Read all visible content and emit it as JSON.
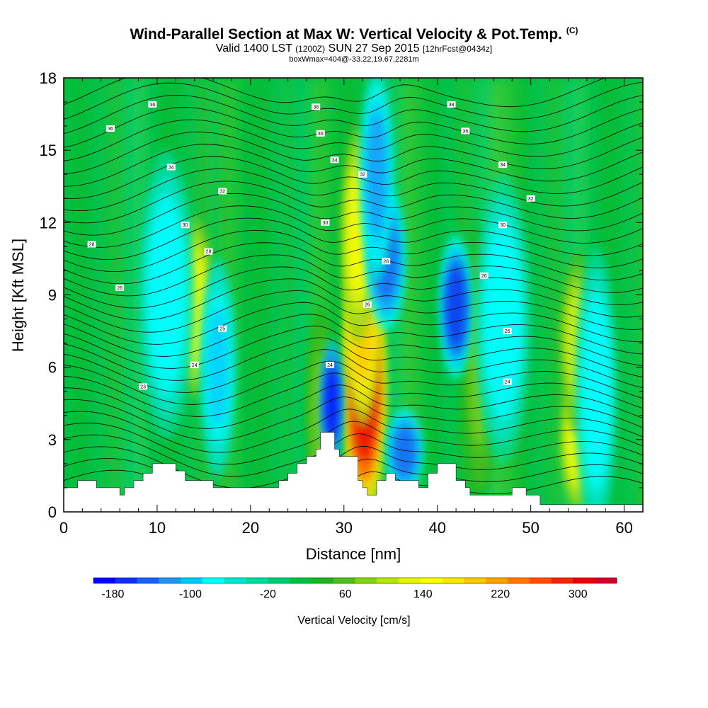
{
  "chart_data": {
    "type": "heatmap",
    "title": "Wind-Parallel Section at Max W: Vertical Velocity & Pot.Temp.",
    "title_mark": "(C)",
    "subtitle_main": "Valid 1400 LST",
    "subtitle_utc": "(1200Z)",
    "subtitle_date": "SUN 27 Sep 2015",
    "subtitle_fcst": "[12hrFcst@0434z]",
    "subtitle2": "boxWmax=404@-33.22,19.67,2281m",
    "xlabel": "Distance [nm]",
    "ylabel": "Height [Kft MSL]",
    "xlim": [
      0,
      62
    ],
    "ylim": [
      0,
      18
    ],
    "xticks": [
      0,
      10,
      20,
      30,
      40,
      50,
      60
    ],
    "yticks": [
      0,
      3,
      6,
      9,
      12,
      15,
      18
    ],
    "colorbar": {
      "label": "Vertical Velocity [cm/s]",
      "ticks": [
        -180,
        -100,
        -20,
        60,
        140,
        220,
        300
      ],
      "range": [
        -200,
        340
      ],
      "colors": [
        "#0000ff",
        "#0a32f0",
        "#1464f0",
        "#1e96f8",
        "#00c8ff",
        "#00ffff",
        "#00e6d2",
        "#00dca0",
        "#00cc6e",
        "#00c040",
        "#1eb41e",
        "#4cbf1a",
        "#82d21e",
        "#b4e614",
        "#e6f50a",
        "#ffff00",
        "#ffe600",
        "#ffc800",
        "#ffa000",
        "#ff7800",
        "#ff5000",
        "#f02800",
        "#e60000",
        "#d20028"
      ]
    },
    "terrain": [
      [
        0,
        1
      ],
      [
        1.5,
        1
      ],
      [
        1.5,
        1.3
      ],
      [
        3.5,
        1.3
      ],
      [
        3.5,
        1
      ],
      [
        6,
        1
      ],
      [
        6,
        0.7
      ],
      [
        6.5,
        0.7
      ],
      [
        6.5,
        1
      ],
      [
        7.5,
        1
      ],
      [
        7.5,
        1.3
      ],
      [
        8.5,
        1.3
      ],
      [
        8.5,
        1.6
      ],
      [
        9.5,
        1.6
      ],
      [
        9.5,
        2
      ],
      [
        12,
        2
      ],
      [
        12,
        1.7
      ],
      [
        13,
        1.7
      ],
      [
        13,
        1.3
      ],
      [
        16,
        1.3
      ],
      [
        16,
        1
      ],
      [
        23,
        1
      ],
      [
        23,
        1.3
      ],
      [
        24,
        1.3
      ],
      [
        24,
        1.6
      ],
      [
        25,
        1.6
      ],
      [
        25,
        2
      ],
      [
        26,
        2
      ],
      [
        26,
        2.3
      ],
      [
        27,
        2.3
      ],
      [
        27,
        2.6
      ],
      [
        27.5,
        2.6
      ],
      [
        27.5,
        3.3
      ],
      [
        29,
        3.3
      ],
      [
        29,
        2.6
      ],
      [
        29.5,
        2.6
      ],
      [
        29.5,
        2.3
      ],
      [
        31.5,
        2.3
      ],
      [
        31.5,
        1.3
      ],
      [
        32,
        1.3
      ],
      [
        32,
        1
      ],
      [
        32.5,
        1
      ],
      [
        32.5,
        0.7
      ],
      [
        33.5,
        0.7
      ],
      [
        33.5,
        1.3
      ],
      [
        34.5,
        1.3
      ],
      [
        34.5,
        1.6
      ],
      [
        35.5,
        1.6
      ],
      [
        35.5,
        1.3
      ],
      [
        38,
        1.3
      ],
      [
        38,
        1
      ],
      [
        39,
        1
      ],
      [
        39,
        1.6
      ],
      [
        40,
        1.6
      ],
      [
        40,
        2
      ],
      [
        42,
        2
      ],
      [
        42,
        1.3
      ],
      [
        43,
        1.3
      ],
      [
        43,
        1
      ],
      [
        43.5,
        1
      ],
      [
        43.5,
        0.7
      ],
      [
        48,
        0.7
      ],
      [
        48,
        1
      ],
      [
        49.5,
        1
      ],
      [
        49.5,
        0.7
      ],
      [
        51,
        0.7
      ],
      [
        51,
        0.3
      ],
      [
        62,
        0.3
      ]
    ],
    "updraft_zones": [
      {
        "x": 32.2,
        "y": 5,
        "w": 1.6,
        "h": 3.5,
        "value": 300
      },
      {
        "x": 32,
        "y": 8,
        "w": 1.3,
        "h": 3,
        "value": 200
      },
      {
        "x": 31.5,
        "y": 11.5,
        "w": 1.2,
        "h": 3,
        "value": 140
      },
      {
        "x": 14,
        "y": 8.5,
        "w": 1.3,
        "h": 2.5,
        "value": 140
      },
      {
        "x": 55,
        "y": 3,
        "w": 1.2,
        "h": 2,
        "value": 140
      },
      {
        "x": 55,
        "y": 7,
        "w": 1.3,
        "h": 2.5,
        "value": 120
      },
      {
        "x": 27.5,
        "y": 4,
        "w": 1,
        "h": 3,
        "value": 80
      },
      {
        "x": 44.5,
        "y": 6,
        "w": 1.2,
        "h": 4,
        "value": 80
      }
    ],
    "downdraft_zones": [
      {
        "x": 28.7,
        "y": 4.5,
        "w": 0.8,
        "h": 1.8,
        "value": -180
      },
      {
        "x": 34.5,
        "y": 10.5,
        "w": 1.4,
        "h": 2,
        "value": -140
      },
      {
        "x": 42,
        "y": 8.5,
        "w": 1.2,
        "h": 2,
        "value": -160
      },
      {
        "x": 36.5,
        "y": 2.5,
        "w": 1.3,
        "h": 1.2,
        "value": -140
      },
      {
        "x": 33.5,
        "y": 14,
        "w": 1.2,
        "h": 3,
        "value": -120
      },
      {
        "x": 11,
        "y": 9,
        "w": 2,
        "h": 4,
        "value": -80
      },
      {
        "x": 16.5,
        "y": 6,
        "w": 1.3,
        "h": 3,
        "value": -90
      },
      {
        "x": 47,
        "y": 8,
        "w": 2,
        "h": 4,
        "value": -80
      },
      {
        "x": 57,
        "y": 5,
        "w": 1.5,
        "h": 4,
        "value": -80
      }
    ],
    "isentrope_labels": [
      {
        "x": 9.5,
        "y": 16.9,
        "text": "36"
      },
      {
        "x": 5,
        "y": 15.9,
        "text": "36"
      },
      {
        "x": 27,
        "y": 16.8,
        "text": "38"
      },
      {
        "x": 27.5,
        "y": 15.7,
        "text": "36"
      },
      {
        "x": 41.5,
        "y": 16.9,
        "text": "38"
      },
      {
        "x": 43,
        "y": 15.8,
        "text": "36"
      },
      {
        "x": 11.5,
        "y": 14.3,
        "text": "34"
      },
      {
        "x": 29,
        "y": 14.6,
        "text": "34"
      },
      {
        "x": 47,
        "y": 14.4,
        "text": "34"
      },
      {
        "x": 32,
        "y": 14.0,
        "text": "32"
      },
      {
        "x": 17,
        "y": 13.3,
        "text": "32"
      },
      {
        "x": 50,
        "y": 13.0,
        "text": "32"
      },
      {
        "x": 13,
        "y": 11.9,
        "text": "30"
      },
      {
        "x": 28,
        "y": 12.0,
        "text": "30"
      },
      {
        "x": 47,
        "y": 11.9,
        "text": "30"
      },
      {
        "x": 3,
        "y": 11.1,
        "text": "28"
      },
      {
        "x": 15.5,
        "y": 10.8,
        "text": "28"
      },
      {
        "x": 34.5,
        "y": 10.4,
        "text": "28"
      },
      {
        "x": 6,
        "y": 9.3,
        "text": "26"
      },
      {
        "x": 45,
        "y": 9.8,
        "text": "26"
      },
      {
        "x": 32.5,
        "y": 8.6,
        "text": "26"
      },
      {
        "x": 17,
        "y": 7.6,
        "text": "25"
      },
      {
        "x": 47.5,
        "y": 7.5,
        "text": "26"
      },
      {
        "x": 14,
        "y": 6.1,
        "text": "24"
      },
      {
        "x": 28.5,
        "y": 6.1,
        "text": "24"
      },
      {
        "x": 47.5,
        "y": 5.4,
        "text": "24"
      },
      {
        "x": 8.5,
        "y": 5.2,
        "text": "23"
      }
    ]
  }
}
